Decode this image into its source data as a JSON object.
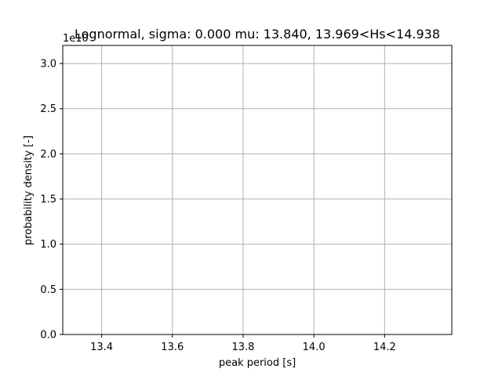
{
  "chart_data": {
    "type": "line",
    "title": "Lognormal, sigma: 0.000 mu: 13.840, 13.969<Hs<14.938",
    "xlabel": "peak period [s]",
    "ylabel": "probability density [-]",
    "y_offset_label": "1e10",
    "xlim": [
      13.29,
      14.39
    ],
    "ylim": [
      0,
      3.2
    ],
    "x_ticks": [
      13.4,
      13.6,
      13.8,
      14.0,
      14.2
    ],
    "x_tick_labels": [
      "13.4",
      "13.6",
      "13.8",
      "14.0",
      "14.2"
    ],
    "y_ticks": [
      0.0,
      0.5,
      1.0,
      1.5,
      2.0,
      2.5,
      3.0
    ],
    "y_tick_labels": [
      "0.0",
      "0.5",
      "1.0",
      "1.5",
      "2.0",
      "2.5",
      "3.0"
    ],
    "grid": true,
    "series": []
  },
  "colors": {
    "grid": "#b0b0b0",
    "axes": "#000000"
  }
}
